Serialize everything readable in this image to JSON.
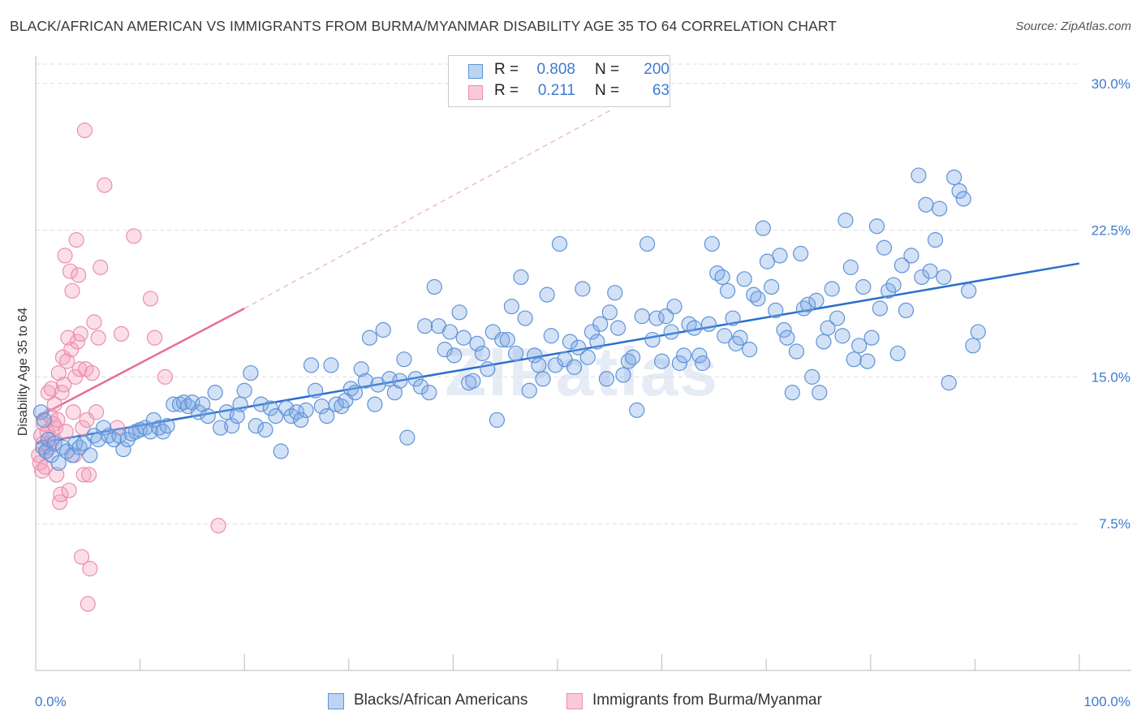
{
  "header": {
    "title": "BLACK/AFRICAN AMERICAN VS IMMIGRANTS FROM BURMA/MYANMAR DISABILITY AGE 35 TO 64 CORRELATION CHART",
    "source": "Source: ZipAtlas.com"
  },
  "watermark": {
    "text": "ZIPatlas"
  },
  "legend": {
    "r_label": "R =",
    "n_label": "N =",
    "blue": {
      "r": "0.808",
      "n": "200",
      "color": "#a9c8ee"
    },
    "pink": {
      "r": "0.211",
      "n": "63",
      "color": "#f7b8cb"
    }
  },
  "bottom_legend": {
    "blue_label": "Blacks/African Americans",
    "pink_label": "Immigrants from Burma/Myanmar"
  },
  "chart_data": {
    "type": "scatter",
    "title": "BLACK/AFRICAN AMERICAN VS IMMIGRANTS FROM BURMA/MYANMAR DISABILITY AGE 35 TO 64 CORRELATION CHART",
    "xlabel": "",
    "ylabel": "Disability Age 35 to 64",
    "xlim": [
      0,
      100
    ],
    "ylim": [
      0,
      31.4
    ],
    "x_tick_labels": [
      "0.0%",
      "100.0%"
    ],
    "y_ticks": [
      7.5,
      15.0,
      22.5,
      30.0
    ],
    "y_tick_labels": [
      "7.5%",
      "15.0%",
      "22.5%",
      "30.0%"
    ],
    "grid": true,
    "legend_position": "top-center",
    "colors": {
      "blue": "#4f8ad6",
      "blue_line": "#2a6fcc",
      "pink": "#ec8cab",
      "pink_line": "#e56e96"
    },
    "series": [
      {
        "name": "Blacks/African Americans",
        "color": "blue",
        "trend": {
          "x0": 0.0,
          "y0": 11.6,
          "x1": 100.0,
          "y1": 20.8
        },
        "points": [
          [
            0.5,
            13.2
          ],
          [
            0.7,
            11.4
          ],
          [
            0.8,
            12.8
          ],
          [
            1.0,
            11.2
          ],
          [
            1.2,
            11.8
          ],
          [
            1.5,
            11.0
          ],
          [
            1.8,
            11.6
          ],
          [
            2.2,
            10.6
          ],
          [
            2.6,
            11.4
          ],
          [
            3.0,
            11.2
          ],
          [
            3.5,
            11.0
          ],
          [
            3.8,
            11.6
          ],
          [
            4.2,
            11.4
          ],
          [
            4.6,
            11.6
          ],
          [
            5.2,
            11.0
          ],
          [
            5.6,
            12.0
          ],
          [
            6.0,
            11.8
          ],
          [
            6.5,
            12.4
          ],
          [
            7.0,
            12.0
          ],
          [
            7.5,
            11.8
          ],
          [
            8.0,
            12.0
          ],
          [
            8.4,
            11.3
          ],
          [
            8.8,
            11.8
          ],
          [
            9.2,
            12.1
          ],
          [
            9.6,
            12.2
          ],
          [
            10.0,
            12.3
          ],
          [
            10.5,
            12.4
          ],
          [
            11.0,
            12.2
          ],
          [
            11.3,
            12.8
          ],
          [
            11.8,
            12.4
          ],
          [
            12.2,
            12.2
          ],
          [
            12.6,
            12.5
          ],
          [
            13.2,
            13.6
          ],
          [
            13.8,
            13.6
          ],
          [
            14.2,
            13.7
          ],
          [
            14.6,
            13.5
          ],
          [
            15.0,
            13.7
          ],
          [
            15.6,
            13.2
          ],
          [
            16.0,
            13.6
          ],
          [
            16.5,
            13.0
          ],
          [
            17.2,
            14.2
          ],
          [
            17.7,
            12.4
          ],
          [
            18.3,
            13.2
          ],
          [
            18.8,
            12.5
          ],
          [
            19.3,
            13.0
          ],
          [
            19.6,
            13.6
          ],
          [
            20.0,
            14.3
          ],
          [
            20.6,
            15.2
          ],
          [
            21.1,
            12.5
          ],
          [
            21.6,
            13.6
          ],
          [
            22.0,
            12.3
          ],
          [
            22.5,
            13.4
          ],
          [
            23.0,
            13.0
          ],
          [
            23.5,
            11.2
          ],
          [
            24.0,
            13.4
          ],
          [
            24.5,
            13.0
          ],
          [
            25.0,
            13.2
          ],
          [
            25.4,
            12.8
          ],
          [
            25.9,
            13.3
          ],
          [
            26.4,
            15.6
          ],
          [
            26.8,
            14.3
          ],
          [
            27.4,
            13.5
          ],
          [
            27.9,
            13.0
          ],
          [
            28.3,
            15.6
          ],
          [
            28.8,
            13.6
          ],
          [
            29.3,
            13.5
          ],
          [
            29.7,
            13.8
          ],
          [
            30.2,
            14.4
          ],
          [
            30.6,
            14.2
          ],
          [
            31.2,
            15.4
          ],
          [
            31.6,
            14.8
          ],
          [
            32.0,
            17.0
          ],
          [
            32.5,
            13.6
          ],
          [
            32.8,
            14.6
          ],
          [
            33.3,
            17.4
          ],
          [
            33.9,
            14.9
          ],
          [
            34.4,
            14.2
          ],
          [
            34.9,
            14.8
          ],
          [
            35.3,
            15.9
          ],
          [
            35.6,
            11.9
          ],
          [
            36.4,
            14.9
          ],
          [
            36.9,
            14.5
          ],
          [
            37.3,
            17.6
          ],
          [
            37.7,
            14.2
          ],
          [
            38.2,
            19.6
          ],
          [
            38.6,
            17.6
          ],
          [
            39.2,
            16.4
          ],
          [
            39.7,
            17.3
          ],
          [
            40.1,
            16.1
          ],
          [
            40.6,
            18.3
          ],
          [
            41.0,
            17.0
          ],
          [
            41.5,
            14.7
          ],
          [
            41.9,
            14.8
          ],
          [
            42.3,
            16.7
          ],
          [
            42.8,
            16.2
          ],
          [
            43.3,
            15.4
          ],
          [
            43.8,
            17.3
          ],
          [
            44.2,
            12.8
          ],
          [
            44.7,
            16.9
          ],
          [
            45.2,
            16.9
          ],
          [
            45.6,
            18.6
          ],
          [
            46.0,
            16.2
          ],
          [
            46.5,
            20.1
          ],
          [
            46.9,
            18.0
          ],
          [
            47.3,
            14.3
          ],
          [
            47.8,
            16.1
          ],
          [
            48.2,
            15.6
          ],
          [
            48.6,
            14.9
          ],
          [
            49.0,
            19.2
          ],
          [
            49.4,
            17.1
          ],
          [
            49.8,
            15.6
          ],
          [
            50.2,
            21.8
          ],
          [
            50.7,
            15.9
          ],
          [
            51.2,
            16.8
          ],
          [
            51.6,
            15.5
          ],
          [
            52.0,
            16.5
          ],
          [
            52.4,
            19.5
          ],
          [
            52.9,
            16.0
          ],
          [
            53.3,
            17.3
          ],
          [
            53.8,
            16.8
          ],
          [
            54.1,
            17.7
          ],
          [
            54.7,
            14.9
          ],
          [
            55.0,
            18.3
          ],
          [
            55.5,
            19.3
          ],
          [
            55.8,
            17.5
          ],
          [
            56.3,
            15.1
          ],
          [
            56.8,
            15.8
          ],
          [
            57.2,
            16.0
          ],
          [
            57.6,
            13.3
          ],
          [
            58.1,
            18.1
          ],
          [
            58.6,
            21.8
          ],
          [
            59.1,
            16.9
          ],
          [
            59.5,
            18.0
          ],
          [
            60.0,
            15.8
          ],
          [
            60.4,
            18.1
          ],
          [
            60.9,
            17.3
          ],
          [
            61.2,
            18.6
          ],
          [
            61.7,
            15.7
          ],
          [
            62.1,
            16.1
          ],
          [
            62.6,
            17.7
          ],
          [
            63.1,
            17.5
          ],
          [
            63.6,
            16.1
          ],
          [
            63.9,
            15.7
          ],
          [
            64.5,
            17.7
          ],
          [
            64.8,
            21.8
          ],
          [
            65.3,
            20.3
          ],
          [
            65.8,
            20.1
          ],
          [
            66.0,
            17.1
          ],
          [
            66.3,
            19.4
          ],
          [
            66.8,
            18.0
          ],
          [
            67.1,
            16.7
          ],
          [
            67.5,
            17.0
          ],
          [
            67.9,
            20.0
          ],
          [
            68.4,
            16.4
          ],
          [
            68.8,
            19.2
          ],
          [
            69.2,
            19.0
          ],
          [
            69.7,
            22.6
          ],
          [
            70.1,
            20.9
          ],
          [
            70.5,
            19.6
          ],
          [
            70.9,
            18.4
          ],
          [
            71.3,
            21.2
          ],
          [
            71.7,
            17.4
          ],
          [
            72.0,
            17.0
          ],
          [
            72.5,
            14.2
          ],
          [
            72.9,
            16.3
          ],
          [
            73.3,
            21.3
          ],
          [
            73.6,
            18.5
          ],
          [
            74.0,
            18.7
          ],
          [
            74.4,
            15.0
          ],
          [
            74.8,
            18.9
          ],
          [
            75.1,
            14.2
          ],
          [
            75.5,
            16.8
          ],
          [
            75.9,
            17.5
          ],
          [
            76.3,
            19.5
          ],
          [
            76.8,
            18.0
          ],
          [
            77.3,
            17.1
          ],
          [
            77.6,
            23.0
          ],
          [
            78.1,
            20.6
          ],
          [
            78.4,
            15.9
          ],
          [
            78.9,
            16.6
          ],
          [
            79.3,
            19.6
          ],
          [
            79.7,
            15.8
          ],
          [
            80.1,
            17.0
          ],
          [
            80.6,
            22.7
          ],
          [
            80.9,
            18.5
          ],
          [
            81.3,
            21.6
          ],
          [
            81.7,
            19.4
          ],
          [
            82.2,
            19.7
          ],
          [
            82.6,
            16.2
          ],
          [
            83.0,
            20.7
          ],
          [
            83.4,
            18.4
          ],
          [
            83.9,
            21.2
          ],
          [
            84.6,
            25.3
          ],
          [
            84.9,
            20.1
          ],
          [
            85.3,
            23.8
          ],
          [
            85.7,
            20.4
          ],
          [
            86.2,
            22.0
          ],
          [
            86.6,
            23.6
          ],
          [
            87.0,
            20.1
          ],
          [
            87.5,
            14.7
          ],
          [
            88.0,
            25.2
          ],
          [
            88.5,
            24.5
          ],
          [
            88.9,
            24.1
          ],
          [
            89.4,
            19.4
          ],
          [
            89.8,
            16.6
          ],
          [
            90.3,
            17.3
          ]
        ]
      },
      {
        "name": "Immigrants from Burma/Myanmar",
        "color": "pink",
        "trend": {
          "x0": 0.0,
          "y0": 12.9,
          "x1": 20.0,
          "y1": 18.5
        },
        "trend_dashed_to": {
          "x": 55.0,
          "y": 28.6
        },
        "points": [
          [
            0.3,
            11.0
          ],
          [
            0.4,
            10.6
          ],
          [
            0.5,
            12.0
          ],
          [
            0.6,
            10.2
          ],
          [
            0.7,
            11.6
          ],
          [
            0.8,
            12.6
          ],
          [
            0.9,
            10.4
          ],
          [
            1.0,
            11.2
          ],
          [
            1.1,
            12.2
          ],
          [
            1.2,
            14.2
          ],
          [
            1.3,
            11.4
          ],
          [
            1.4,
            13.0
          ],
          [
            1.5,
            14.4
          ],
          [
            1.6,
            11.8
          ],
          [
            1.7,
            12.6
          ],
          [
            1.8,
            13.6
          ],
          [
            1.9,
            12.4
          ],
          [
            2.0,
            10.0
          ],
          [
            2.1,
            12.8
          ],
          [
            2.2,
            15.2
          ],
          [
            2.3,
            8.6
          ],
          [
            2.4,
            9.0
          ],
          [
            2.5,
            14.2
          ],
          [
            2.6,
            16.0
          ],
          [
            2.7,
            14.6
          ],
          [
            2.8,
            21.2
          ],
          [
            2.9,
            12.2
          ],
          [
            3.0,
            15.8
          ],
          [
            3.1,
            17.0
          ],
          [
            3.2,
            9.2
          ],
          [
            3.3,
            20.4
          ],
          [
            3.4,
            16.4
          ],
          [
            3.5,
            19.4
          ],
          [
            3.6,
            13.2
          ],
          [
            3.7,
            11.0
          ],
          [
            3.8,
            15.0
          ],
          [
            3.9,
            22.0
          ],
          [
            4.0,
            16.8
          ],
          [
            4.1,
            20.2
          ],
          [
            4.2,
            15.4
          ],
          [
            4.3,
            17.2
          ],
          [
            4.4,
            5.8
          ],
          [
            4.5,
            12.4
          ],
          [
            4.6,
            10.0
          ],
          [
            4.7,
            27.6
          ],
          [
            4.8,
            15.4
          ],
          [
            4.9,
            12.8
          ],
          [
            5.0,
            3.4
          ],
          [
            5.1,
            10.0
          ],
          [
            5.2,
            5.2
          ],
          [
            5.4,
            15.2
          ],
          [
            5.6,
            17.8
          ],
          [
            5.8,
            13.2
          ],
          [
            6.0,
            17.0
          ],
          [
            6.2,
            20.6
          ],
          [
            6.6,
            24.8
          ],
          [
            7.8,
            12.4
          ],
          [
            8.2,
            17.2
          ],
          [
            9.4,
            22.2
          ],
          [
            11.0,
            19.0
          ],
          [
            11.4,
            17.0
          ],
          [
            12.4,
            15.0
          ],
          [
            17.5,
            7.4
          ]
        ]
      }
    ]
  }
}
